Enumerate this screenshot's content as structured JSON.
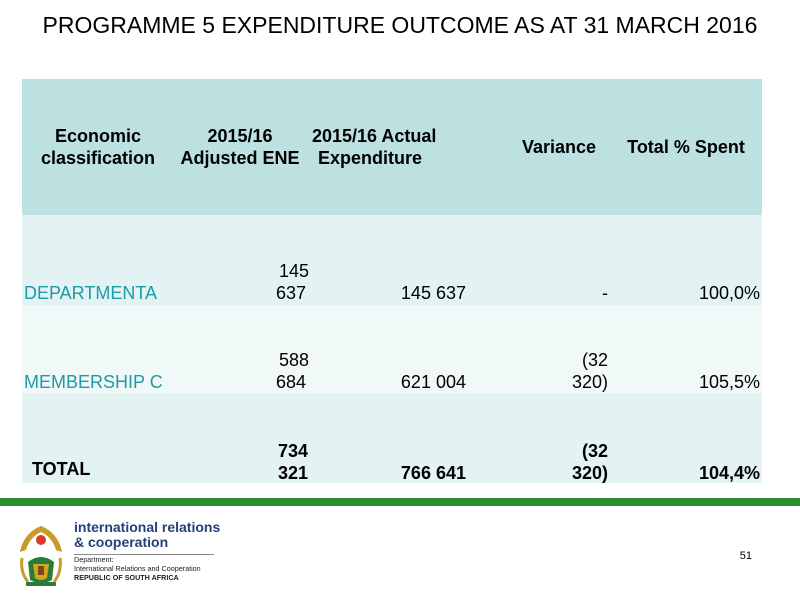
{
  "title": "PROGRAMME 5 EXPENDITURE OUTCOME AS AT 31 MARCH 2016",
  "table": {
    "headers": {
      "classification": [
        "Economic",
        "classification"
      ],
      "adjusted": [
        "2015/16",
        "Adjusted ENE"
      ],
      "actual": [
        "2015/16 Actual",
        "Expenditure"
      ],
      "variance": "Variance",
      "percent": "Total % Spent"
    },
    "rows": [
      {
        "name": "DEPARTMENTA",
        "adjusted": [
          "145",
          "637"
        ],
        "actual": "145 637",
        "variance": [
          "-"
        ],
        "percent": "100,0%"
      },
      {
        "name": "MEMBERSHIP C",
        "adjusted": [
          "588",
          "684"
        ],
        "actual": "621 004",
        "variance": [
          "(32",
          "320)"
        ],
        "percent": "105,5%"
      }
    ],
    "total": {
      "name": "TOTAL",
      "adjusted": [
        "734",
        "321"
      ],
      "actual": "766 641",
      "variance": [
        "(32",
        "320)"
      ],
      "percent": "104,4%"
    }
  },
  "footer": {
    "logo_line1": "international relations",
    "logo_line2": "& cooperation",
    "dept_line1": "Department:",
    "dept_line2": "International Relations and Cooperation",
    "dept_line3": "REPUBLIC OF SOUTH AFRICA",
    "page_number": "51"
  },
  "colors": {
    "header_bg": "#bde1e1",
    "row_bg": "#e3f2f2",
    "row_link_text": "#1f9aa6",
    "rule": "#2e8b2e",
    "logo_text": "#243f7a"
  },
  "icons": {
    "emblem": "coat-of-arms-icon"
  }
}
